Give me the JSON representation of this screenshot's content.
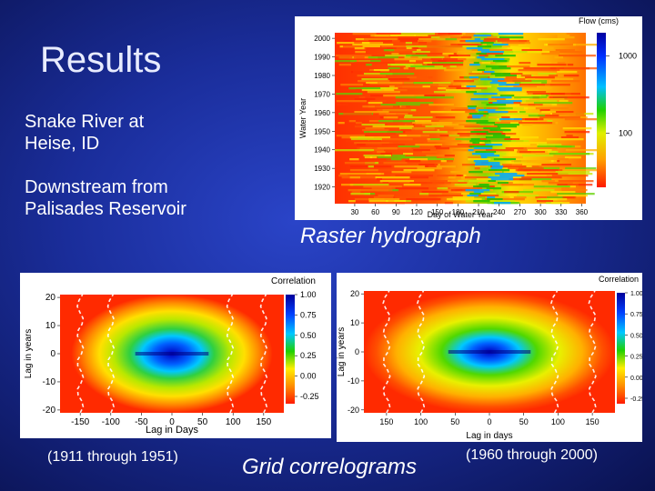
{
  "slide": {
    "title": "Results",
    "site_line1": "Snake River at",
    "site_line2": "Heise, ID",
    "down_line1": "Downstream from",
    "down_line2": "Palisades Reservoir",
    "raster_caption": "Raster hydrograph",
    "grid_caption": "Grid correlograms",
    "left_period": "(1911 through 1951)",
    "right_period": "(1960 through 2000)"
  },
  "colors": {
    "red": "#ff2a00",
    "orange": "#ff9a00",
    "yellow": "#ffee00",
    "green": "#22c000",
    "blue": "#0018d0"
  },
  "chart_data": [
    {
      "type": "heatmap",
      "title": "",
      "xlabel": "Day of Water Year",
      "ylabel": "Water Year",
      "x_ticks": [
        "30",
        "60",
        "90",
        "120",
        "150",
        "180",
        "210",
        "240",
        "270",
        "300",
        "330",
        "360"
      ],
      "y_ticks": [
        "2000",
        "1990",
        "1980",
        "1970",
        "1960",
        "1950",
        "1940",
        "1930",
        "1920"
      ],
      "xlim": [
        1,
        366
      ],
      "ylim": [
        1911,
        2003
      ],
      "colorbar_label": "Flow (cms)",
      "colorbar_ticks": [
        "1000",
        "100"
      ],
      "colorbar_tick_values": [
        1000,
        100
      ]
    },
    {
      "type": "heatmap",
      "title": "",
      "xlabel": "Lag in Days",
      "ylabel": "Lag in years",
      "x_ticks": [
        "-150",
        "-100",
        "-50",
        "0",
        "50",
        "100",
        "150"
      ],
      "y_ticks": [
        "20",
        "10",
        "0",
        "-10",
        "-20"
      ],
      "xlim": [
        -183,
        183
      ],
      "ylim": [
        -21,
        21
      ],
      "colorbar_label": "Correlation",
      "colorbar_ticks": [
        "1.00",
        "0.75",
        "0.50",
        "0.25",
        "0.00",
        "-0.25"
      ]
    },
    {
      "type": "heatmap",
      "title": "",
      "xlabel": "Lag in days",
      "ylabel": "Lag in years",
      "x_ticks": [
        "150",
        "100",
        "50",
        "0",
        "50",
        "100",
        "150"
      ],
      "y_ticks": [
        "20",
        "10",
        "0",
        "-10",
        "-20"
      ],
      "xlim": [
        -183,
        183
      ],
      "ylim": [
        -21,
        21
      ],
      "colorbar_label": "Correlation",
      "colorbar_ticks": [
        "1.00",
        "0.75",
        "0.50",
        "0.25",
        "0.00",
        "-0.25"
      ]
    }
  ]
}
